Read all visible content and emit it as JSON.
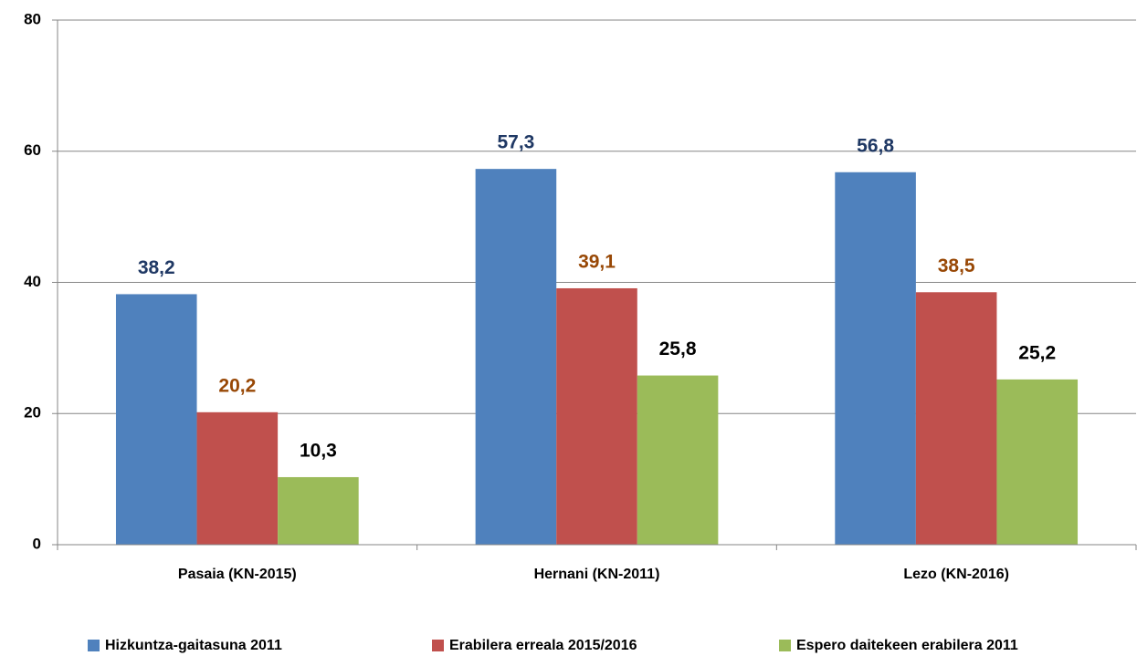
{
  "chart_data": {
    "type": "bar",
    "categories": [
      "Pasaia (KN-2015)",
      "Hernani (KN-2011)",
      "Lezo (KN-2016)"
    ],
    "series": [
      {
        "name": "Hizkuntza-gaitasuna 2011",
        "color": "#4f81bd",
        "label_color": "#1f3864",
        "values": [
          38.2,
          57.3,
          56.8
        ],
        "value_labels": [
          "38,2",
          "57,3",
          "56,8"
        ]
      },
      {
        "name": "Erabilera erreala 2015/2016",
        "color": "#c0504d",
        "label_color": "#984806",
        "values": [
          20.2,
          39.1,
          38.5
        ],
        "value_labels": [
          "20,2",
          "39,1",
          "38,5"
        ]
      },
      {
        "name": "Espero daitekeen erabilera 2011",
        "color": "#9bbb59",
        "label_color": "#000000",
        "values": [
          10.3,
          25.8,
          25.2
        ],
        "value_labels": [
          "10,3",
          "25,8",
          "25,2"
        ]
      }
    ],
    "ylim": [
      0,
      80
    ],
    "yticks": [
      0,
      20,
      40,
      60,
      80
    ],
    "grid": true,
    "legend": "bottom"
  }
}
